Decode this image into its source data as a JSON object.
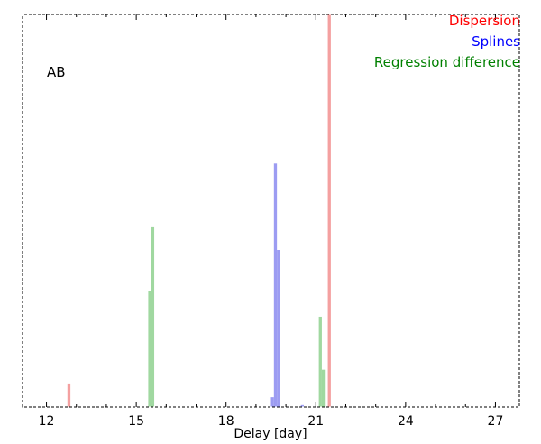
{
  "chart_data": {
    "type": "bar",
    "title": "",
    "panel_label": "AB",
    "xlabel": "Delay [day]",
    "ylabel": "",
    "xlim": [
      11.2,
      27.8
    ],
    "ylim": [
      0,
      1.0
    ],
    "xticks": [
      12,
      15,
      18,
      21,
      24,
      27
    ],
    "xtick_labels": [
      "12",
      "15",
      "18",
      "21",
      "24",
      "27"
    ],
    "bin_width": 0.1,
    "legend_placement": "top-right",
    "grid": false,
    "series": [
      {
        "name": "Dispersion",
        "color": "#ff0000",
        "bar_color": "#f4a0a0",
        "bins": [
          {
            "x": 12.75,
            "value": 0.06
          },
          {
            "x": 21.45,
            "value": 1.0
          }
        ]
      },
      {
        "name": "Splines",
        "color": "#0000ff",
        "bar_color": "#9c9cf2",
        "bins": [
          {
            "x": 19.55,
            "value": 0.025
          },
          {
            "x": 19.65,
            "value": 0.62
          },
          {
            "x": 19.75,
            "value": 0.4
          },
          {
            "x": 20.55,
            "value": 0.005
          }
        ]
      },
      {
        "name": "Regression difference",
        "color": "#008000",
        "bar_color": "#a0d8a0",
        "bins": [
          {
            "x": 15.45,
            "value": 0.295
          },
          {
            "x": 15.55,
            "value": 0.46
          },
          {
            "x": 21.15,
            "value": 0.23
          },
          {
            "x": 21.25,
            "value": 0.095
          }
        ]
      }
    ]
  }
}
